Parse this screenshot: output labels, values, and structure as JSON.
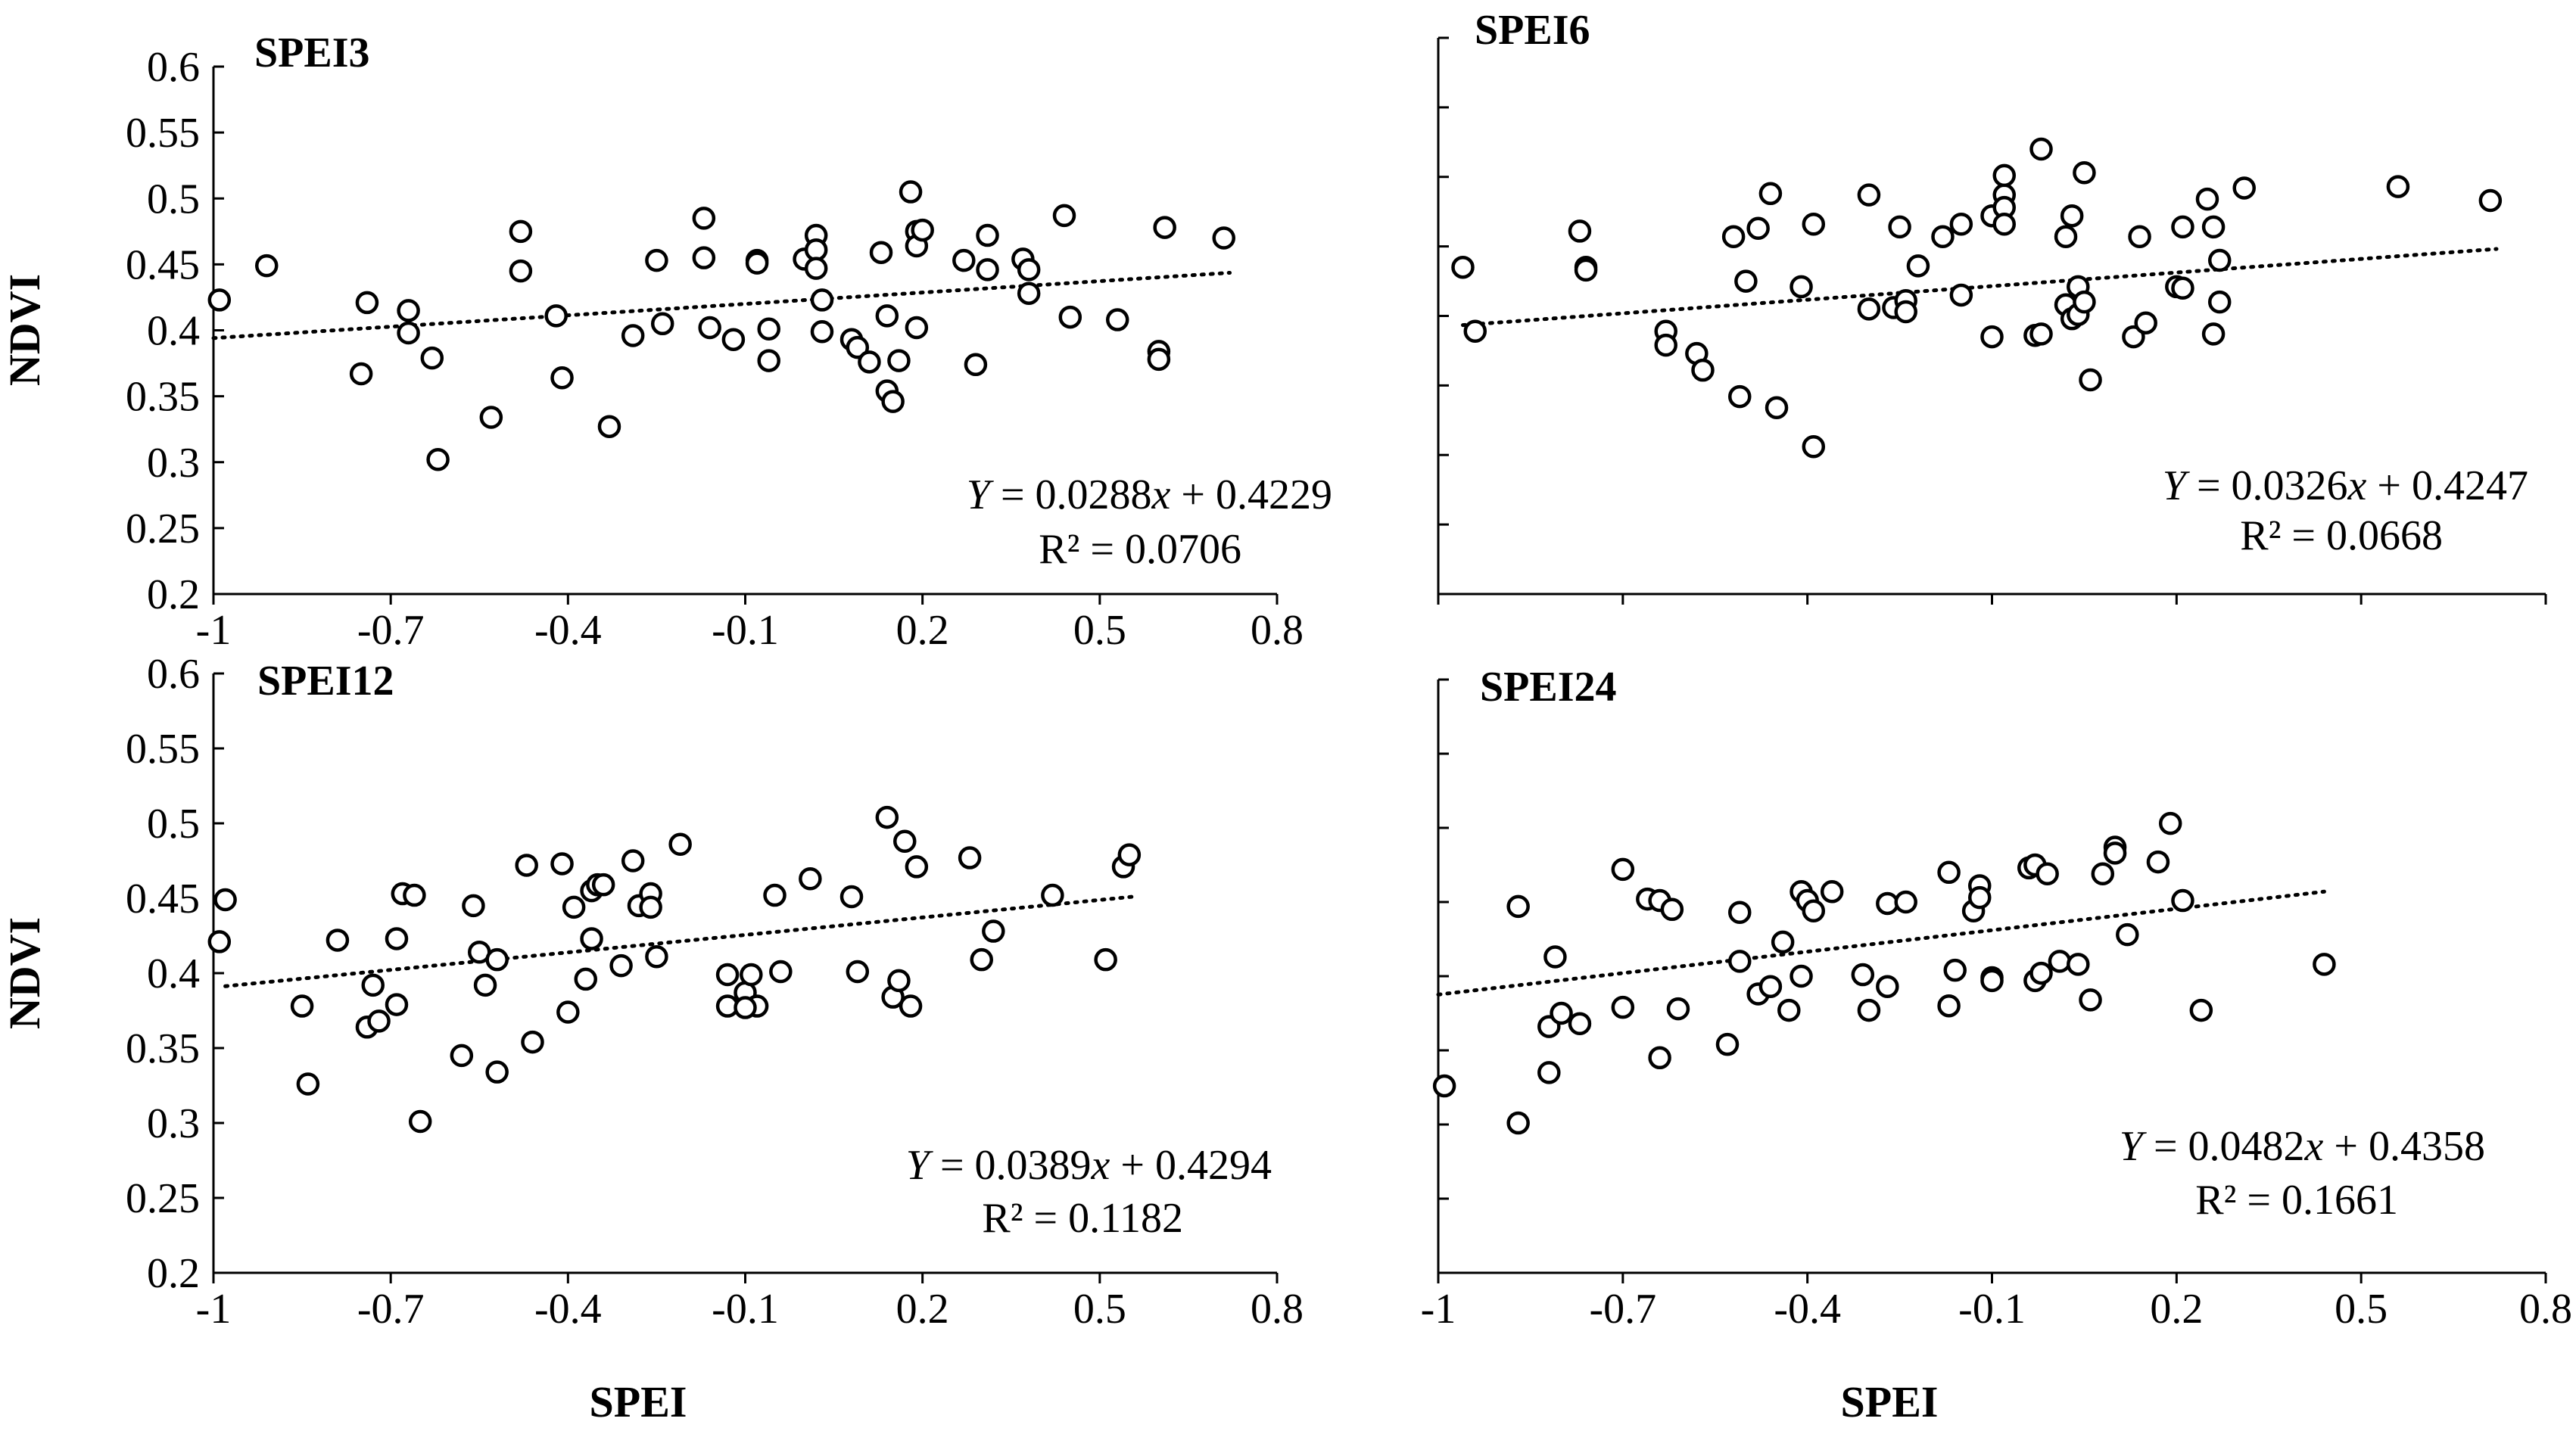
{
  "chart_data": [
    {
      "type": "scatter",
      "title": "SPEI3",
      "xlabel": "",
      "ylabel": "NDVI",
      "xlim": [
        -1,
        0.8
      ],
      "ylim": [
        0.2,
        0.6
      ],
      "x_ticks": [
        "-1",
        "-0.7",
        "-0.4",
        "-0.1",
        "0.2",
        "0.5",
        "0.8"
      ],
      "y_ticks": [
        "0.2",
        "0.25",
        "0.3",
        "0.35",
        "0.4",
        "0.45",
        "0.5",
        "0.55",
        "0.6"
      ],
      "trendline": {
        "slope": 0.0288,
        "intercept": 0.4229,
        "x_range": [
          -1,
          0.72
        ]
      },
      "equation": {
        "lhs": "Y",
        "eq": " = 0.0288",
        "var": "x",
        "rest": " + 0.4229"
      },
      "r_squared": "R² = 0.0706",
      "points": [
        [
          -0.99,
          0.423
        ],
        [
          -0.91,
          0.449
        ],
        [
          -0.75,
          0.367
        ],
        [
          -0.74,
          0.421
        ],
        [
          -0.67,
          0.415
        ],
        [
          -0.67,
          0.398
        ],
        [
          -0.63,
          0.379
        ],
        [
          -0.62,
          0.302
        ],
        [
          -0.53,
          0.334
        ],
        [
          -0.48,
          0.475
        ],
        [
          -0.48,
          0.445
        ],
        [
          -0.42,
          0.411
        ],
        [
          -0.41,
          0.364
        ],
        [
          -0.33,
          0.327
        ],
        [
          -0.29,
          0.396
        ],
        [
          -0.25,
          0.453
        ],
        [
          -0.24,
          0.405
        ],
        [
          -0.17,
          0.455
        ],
        [
          -0.17,
          0.485
        ],
        [
          -0.16,
          0.402
        ],
        [
          -0.12,
          0.393
        ],
        [
          -0.08,
          0.453
        ],
        [
          -0.08,
          0.451
        ],
        [
          -0.06,
          0.401
        ],
        [
          -0.06,
          0.377
        ],
        [
          0.0,
          0.454
        ],
        [
          0.02,
          0.472
        ],
        [
          0.02,
          0.461
        ],
        [
          0.02,
          0.447
        ],
        [
          0.03,
          0.423
        ],
        [
          0.03,
          0.399
        ],
        [
          0.08,
          0.393
        ],
        [
          0.09,
          0.387
        ],
        [
          0.11,
          0.376
        ],
        [
          0.13,
          0.459
        ],
        [
          0.14,
          0.411
        ],
        [
          0.14,
          0.354
        ],
        [
          0.15,
          0.346
        ],
        [
          0.16,
          0.377
        ],
        [
          0.18,
          0.505
        ],
        [
          0.19,
          0.475
        ],
        [
          0.19,
          0.464
        ],
        [
          0.19,
          0.402
        ],
        [
          0.2,
          0.476
        ],
        [
          0.27,
          0.453
        ],
        [
          0.29,
          0.374
        ],
        [
          0.31,
          0.472
        ],
        [
          0.31,
          0.446
        ],
        [
          0.37,
          0.454
        ],
        [
          0.38,
          0.446
        ],
        [
          0.38,
          0.428
        ],
        [
          0.44,
          0.487
        ],
        [
          0.45,
          0.41
        ],
        [
          0.53,
          0.408
        ],
        [
          0.6,
          0.384
        ],
        [
          0.6,
          0.378
        ],
        [
          0.61,
          0.478
        ],
        [
          0.71,
          0.47
        ]
      ]
    },
    {
      "type": "scatter",
      "title": "SPEI6",
      "xlabel": "",
      "ylabel": "",
      "xlim": [
        -1,
        0.8
      ],
      "ylim": [
        0.2,
        0.6
      ],
      "x_ticks": [],
      "y_ticks": [],
      "trendline": {
        "slope": 0.0326,
        "intercept": 0.4247,
        "x_range": [
          -0.96,
          0.72
        ]
      },
      "equation": {
        "lhs": "Y",
        "eq": " = 0.0326",
        "var": "x",
        "rest": " + 0.4247"
      },
      "r_squared": "R² = 0.0668",
      "points": [
        [
          -0.96,
          0.435
        ],
        [
          -0.94,
          0.389
        ],
        [
          -0.77,
          0.461
        ],
        [
          -0.76,
          0.435
        ],
        [
          -0.76,
          0.433
        ],
        [
          -0.63,
          0.389
        ],
        [
          -0.63,
          0.379
        ],
        [
          -0.58,
          0.373
        ],
        [
          -0.57,
          0.361
        ],
        [
          -0.52,
          0.457
        ],
        [
          -0.51,
          0.342
        ],
        [
          -0.5,
          0.425
        ],
        [
          -0.48,
          0.463
        ],
        [
          -0.46,
          0.488
        ],
        [
          -0.45,
          0.334
        ],
        [
          -0.41,
          0.421
        ],
        [
          -0.39,
          0.306
        ],
        [
          -0.39,
          0.466
        ],
        [
          -0.3,
          0.487
        ],
        [
          -0.3,
          0.405
        ],
        [
          -0.26,
          0.406
        ],
        [
          -0.25,
          0.464
        ],
        [
          -0.24,
          0.411
        ],
        [
          -0.24,
          0.403
        ],
        [
          -0.22,
          0.436
        ],
        [
          -0.18,
          0.457
        ],
        [
          -0.15,
          0.466
        ],
        [
          -0.15,
          0.415
        ],
        [
          -0.1,
          0.472
        ],
        [
          -0.08,
          0.487
        ],
        [
          -0.08,
          0.501
        ],
        [
          -0.08,
          0.478
        ],
        [
          -0.08,
          0.466
        ],
        [
          -0.1,
          0.385
        ],
        [
          -0.03,
          0.386
        ],
        [
          -0.02,
          0.387
        ],
        [
          -0.02,
          0.52
        ],
        [
          0.02,
          0.457
        ],
        [
          0.02,
          0.408
        ],
        [
          0.03,
          0.472
        ],
        [
          0.03,
          0.398
        ],
        [
          0.04,
          0.401
        ],
        [
          0.04,
          0.421
        ],
        [
          0.05,
          0.41
        ],
        [
          0.05,
          0.503
        ],
        [
          0.06,
          0.354
        ],
        [
          0.13,
          0.385
        ],
        [
          0.14,
          0.457
        ],
        [
          0.15,
          0.395
        ],
        [
          0.2,
          0.421
        ],
        [
          0.21,
          0.464
        ],
        [
          0.21,
          0.42
        ],
        [
          0.25,
          0.484
        ],
        [
          0.26,
          0.387
        ],
        [
          0.26,
          0.464
        ],
        [
          0.27,
          0.41
        ],
        [
          0.27,
          0.44
        ],
        [
          0.31,
          0.492
        ],
        [
          0.56,
          0.493
        ],
        [
          0.71,
          0.483
        ]
      ]
    },
    {
      "type": "scatter",
      "title": "SPEI12",
      "xlabel": "SPEI",
      "ylabel": "NDVI",
      "xlim": [
        -1,
        0.8
      ],
      "ylim": [
        0.2,
        0.6
      ],
      "x_ticks": [
        "-1",
        "-0.7",
        "-0.4",
        "-0.1",
        "0.2",
        "0.5",
        "0.8"
      ],
      "y_ticks": [
        "0.2",
        "0.25",
        "0.3",
        "0.35",
        "0.4",
        "0.45",
        "0.5",
        "0.55",
        "0.6"
      ],
      "trendline": {
        "slope": 0.0389,
        "intercept": 0.4294,
        "x_range": [
          -0.98,
          0.56
        ]
      },
      "equation": {
        "lhs": "Y",
        "eq": " = 0.0389",
        "var": "x",
        "rest": " + 0.4294"
      },
      "r_squared": "R² = 0.1182",
      "points": [
        [
          -0.98,
          0.449
        ],
        [
          -0.99,
          0.421
        ],
        [
          -0.85,
          0.378
        ],
        [
          -0.84,
          0.326
        ],
        [
          -0.79,
          0.422
        ],
        [
          -0.74,
          0.364
        ],
        [
          -0.72,
          0.368
        ],
        [
          -0.73,
          0.392
        ],
        [
          -0.69,
          0.379
        ],
        [
          -0.69,
          0.423
        ],
        [
          -0.68,
          0.453
        ],
        [
          -0.66,
          0.452
        ],
        [
          -0.65,
          0.301
        ],
        [
          -0.58,
          0.345
        ],
        [
          -0.56,
          0.445
        ],
        [
          -0.55,
          0.414
        ],
        [
          -0.54,
          0.392
        ],
        [
          -0.52,
          0.334
        ],
        [
          -0.52,
          0.409
        ],
        [
          -0.47,
          0.472
        ],
        [
          -0.46,
          0.354
        ],
        [
          -0.41,
          0.473
        ],
        [
          -0.4,
          0.374
        ],
        [
          -0.39,
          0.444
        ],
        [
          -0.37,
          0.396
        ],
        [
          -0.36,
          0.423
        ],
        [
          -0.36,
          0.455
        ],
        [
          -0.35,
          0.459
        ],
        [
          -0.34,
          0.459
        ],
        [
          -0.31,
          0.405
        ],
        [
          -0.29,
          0.475
        ],
        [
          -0.28,
          0.445
        ],
        [
          -0.26,
          0.453
        ],
        [
          -0.26,
          0.444
        ],
        [
          -0.25,
          0.411
        ],
        [
          -0.21,
          0.486
        ],
        [
          -0.13,
          0.399
        ],
        [
          -0.13,
          0.378
        ],
        [
          -0.1,
          0.387
        ],
        [
          -0.09,
          0.399
        ],
        [
          -0.08,
          0.378
        ],
        [
          -0.1,
          0.377
        ],
        [
          -0.05,
          0.452
        ],
        [
          -0.04,
          0.401
        ],
        [
          0.01,
          0.463
        ],
        [
          0.08,
          0.451
        ],
        [
          0.09,
          0.401
        ],
        [
          0.14,
          0.504
        ],
        [
          0.15,
          0.384
        ],
        [
          0.16,
          0.395
        ],
        [
          0.17,
          0.488
        ],
        [
          0.18,
          0.378
        ],
        [
          0.19,
          0.471
        ],
        [
          0.28,
          0.477
        ],
        [
          0.3,
          0.409
        ],
        [
          0.32,
          0.428
        ],
        [
          0.42,
          0.452
        ],
        [
          0.51,
          0.409
        ],
        [
          0.54,
          0.471
        ],
        [
          0.55,
          0.479
        ]
      ]
    },
    {
      "type": "scatter",
      "title": "SPEI24",
      "xlabel": "SPEI",
      "ylabel": "",
      "xlim": [
        -1,
        0.8
      ],
      "ylim": [
        0.2,
        0.6
      ],
      "x_ticks": [
        "-1",
        "-0.7",
        "-0.4",
        "-0.1",
        "0.2",
        "0.5",
        "0.8"
      ],
      "y_ticks": [],
      "trendline": {
        "slope": 0.0482,
        "intercept": 0.4358,
        "x_range": [
          -1,
          0.44
        ]
      },
      "equation": {
        "lhs": "Y",
        "eq": " = 0.0482",
        "var": "x",
        "rest": " + 0.4358"
      },
      "r_squared": "R² = 0.1661",
      "points": [
        [
          -0.99,
          0.326
        ],
        [
          -0.87,
          0.301
        ],
        [
          -0.87,
          0.447
        ],
        [
          -0.82,
          0.335
        ],
        [
          -0.82,
          0.366
        ],
        [
          -0.81,
          0.413
        ],
        [
          -0.8,
          0.375
        ],
        [
          -0.77,
          0.368
        ],
        [
          -0.7,
          0.472
        ],
        [
          -0.7,
          0.379
        ],
        [
          -0.66,
          0.452
        ],
        [
          -0.64,
          0.451
        ],
        [
          -0.64,
          0.345
        ],
        [
          -0.62,
          0.445
        ],
        [
          -0.61,
          0.378
        ],
        [
          -0.53,
          0.354
        ],
        [
          -0.51,
          0.443
        ],
        [
          -0.51,
          0.41
        ],
        [
          -0.48,
          0.388
        ],
        [
          -0.46,
          0.393
        ],
        [
          -0.44,
          0.423
        ],
        [
          -0.43,
          0.377
        ],
        [
          -0.41,
          0.457
        ],
        [
          -0.41,
          0.4
        ],
        [
          -0.4,
          0.451
        ],
        [
          -0.39,
          0.444
        ],
        [
          -0.36,
          0.457
        ],
        [
          -0.31,
          0.401
        ],
        [
          -0.3,
          0.377
        ],
        [
          -0.27,
          0.449
        ],
        [
          -0.27,
          0.393
        ],
        [
          -0.24,
          0.45
        ],
        [
          -0.17,
          0.38
        ],
        [
          -0.17,
          0.47
        ],
        [
          -0.16,
          0.404
        ],
        [
          -0.13,
          0.444
        ],
        [
          -0.12,
          0.461
        ],
        [
          -0.12,
          0.453
        ],
        [
          -0.1,
          0.399
        ],
        [
          -0.1,
          0.397
        ],
        [
          -0.04,
          0.473
        ],
        [
          -0.03,
          0.475
        ],
        [
          -0.03,
          0.397
        ],
        [
          -0.01,
          0.469
        ],
        [
          -0.02,
          0.402
        ],
        [
          0.01,
          0.41
        ],
        [
          0.04,
          0.408
        ],
        [
          0.06,
          0.384
        ],
        [
          0.08,
          0.469
        ],
        [
          0.1,
          0.487
        ],
        [
          0.1,
          0.483
        ],
        [
          0.12,
          0.428
        ],
        [
          0.17,
          0.477
        ],
        [
          0.19,
          0.503
        ],
        [
          0.21,
          0.451
        ],
        [
          0.24,
          0.377
        ],
        [
          0.44,
          0.408
        ]
      ]
    }
  ]
}
